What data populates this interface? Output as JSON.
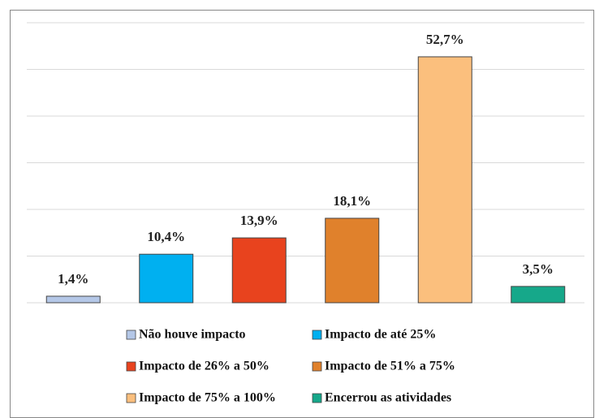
{
  "chart_data": {
    "type": "bar",
    "series": [
      {
        "name": "Não houve impacto",
        "color": "#b4c7e7",
        "values": [
          1.4
        ],
        "value_labels": [
          "1,4%"
        ]
      },
      {
        "name": "Impacto de até 25%",
        "color": "#00b0f0",
        "values": [
          10.4
        ],
        "value_labels": [
          "10,4%"
        ]
      },
      {
        "name": "Impacto de 26% a 50%",
        "color": "#e8431e",
        "values": [
          13.9
        ],
        "value_labels": [
          "13,9%"
        ]
      },
      {
        "name": "Impacto de 51% a 75%",
        "color": "#e0812c",
        "values": [
          18.1
        ],
        "value_labels": [
          "18,1%"
        ]
      },
      {
        "name": "Impacto de 75% a 100%",
        "color": "#fbbf7d",
        "values": [
          52.7
        ],
        "value_labels": [
          "52,7%"
        ]
      },
      {
        "name": "Encerrou as atividades",
        "color": "#16a88a",
        "values": [
          3.5
        ],
        "value_labels": [
          "3,5%"
        ]
      }
    ],
    "ylim": [
      0,
      60
    ],
    "yticks": [
      0,
      10,
      20,
      30,
      40,
      50,
      60
    ],
    "grid": true,
    "legend": "bottom"
  }
}
